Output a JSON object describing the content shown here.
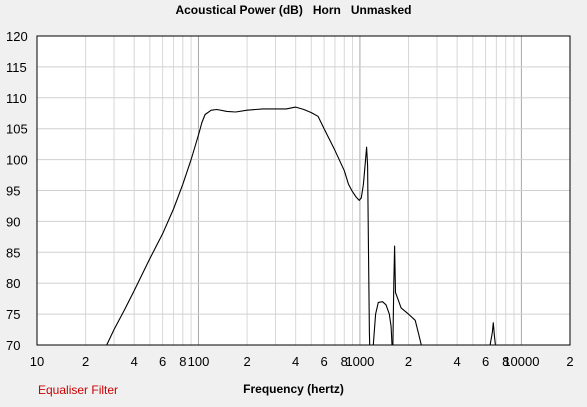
{
  "title": "Acoustical Power (dB)   Horn   Unmasked",
  "footer": {
    "equaliser_label": "Equaliser Filter"
  },
  "chart_data": {
    "type": "line",
    "title": "Acoustical Power (dB)   Horn   Unmasked",
    "xlabel": "Frequency (hertz)",
    "ylabel": "",
    "x_scale": "log",
    "xlim": [
      10,
      20000
    ],
    "ylim": [
      70,
      120
    ],
    "grid": true,
    "legend": "none",
    "line_color": "#000000",
    "y_ticks": [
      120,
      115,
      110,
      105,
      100,
      95,
      90,
      85,
      80,
      75,
      70
    ],
    "x_ticks": [
      {
        "value": 10,
        "label": "10"
      },
      {
        "value": 20,
        "label": "2"
      },
      {
        "value": 40,
        "label": "4"
      },
      {
        "value": 60,
        "label": "6"
      },
      {
        "value": 80,
        "label": "8"
      },
      {
        "value": 100,
        "label": "100"
      },
      {
        "value": 200,
        "label": "2"
      },
      {
        "value": 400,
        "label": "4"
      },
      {
        "value": 600,
        "label": "6"
      },
      {
        "value": 800,
        "label": "8"
      },
      {
        "value": 1000,
        "label": "1000"
      },
      {
        "value": 2000,
        "label": "2"
      },
      {
        "value": 4000,
        "label": "4"
      },
      {
        "value": 6000,
        "label": "6"
      },
      {
        "value": 8000,
        "label": "8"
      },
      {
        "value": 10000,
        "label": "10000"
      },
      {
        "value": 20000,
        "label": "2"
      }
    ],
    "series": [
      {
        "segments": [
          [
            [
              27,
              70
            ],
            [
              30,
              72.5
            ],
            [
              35,
              75.8
            ],
            [
              40,
              78.8
            ],
            [
              50,
              84
            ],
            [
              60,
              88
            ],
            [
              70,
              92
            ],
            [
              80,
              96
            ],
            [
              90,
              100
            ],
            [
              100,
              104
            ],
            [
              105,
              106
            ],
            [
              110,
              107.3
            ],
            [
              120,
              108
            ],
            [
              130,
              108.1
            ],
            [
              150,
              107.8
            ],
            [
              170,
              107.7
            ],
            [
              200,
              108
            ],
            [
              250,
              108.2
            ],
            [
              300,
              108.2
            ],
            [
              350,
              108.2
            ],
            [
              400,
              108.5
            ],
            [
              450,
              108.1
            ],
            [
              500,
              107.6
            ],
            [
              550,
              107
            ],
            [
              600,
              105
            ],
            [
              700,
              101.5
            ],
            [
              800,
              98.2
            ],
            [
              850,
              96
            ],
            [
              900,
              94.8
            ],
            [
              950,
              93.9
            ],
            [
              990,
              93.4
            ],
            [
              1020,
              93.8
            ],
            [
              1050,
              96
            ],
            [
              1080,
              99.5
            ],
            [
              1100,
              102
            ],
            [
              1115,
              99
            ],
            [
              1130,
              85
            ],
            [
              1145,
              72
            ],
            [
              1150,
              70
            ]
          ],
          [
            [
              1210,
              70
            ],
            [
              1250,
              75
            ],
            [
              1300,
              76.9
            ],
            [
              1380,
              77
            ],
            [
              1450,
              76.5
            ],
            [
              1520,
              75
            ],
            [
              1560,
              73
            ],
            [
              1580,
              70
            ]
          ],
          [
            [
              1600,
              70
            ],
            [
              1620,
              80
            ],
            [
              1640,
              86
            ],
            [
              1660,
              78.5
            ],
            [
              1700,
              77.8
            ],
            [
              1800,
              76
            ],
            [
              2000,
              75
            ],
            [
              2200,
              74
            ],
            [
              2300,
              72
            ],
            [
              2400,
              70
            ]
          ],
          [
            [
              6400,
              70
            ],
            [
              6600,
              72
            ],
            [
              6700,
              73.6
            ],
            [
              6800,
              71.5
            ],
            [
              6900,
              70
            ]
          ]
        ]
      }
    ]
  }
}
